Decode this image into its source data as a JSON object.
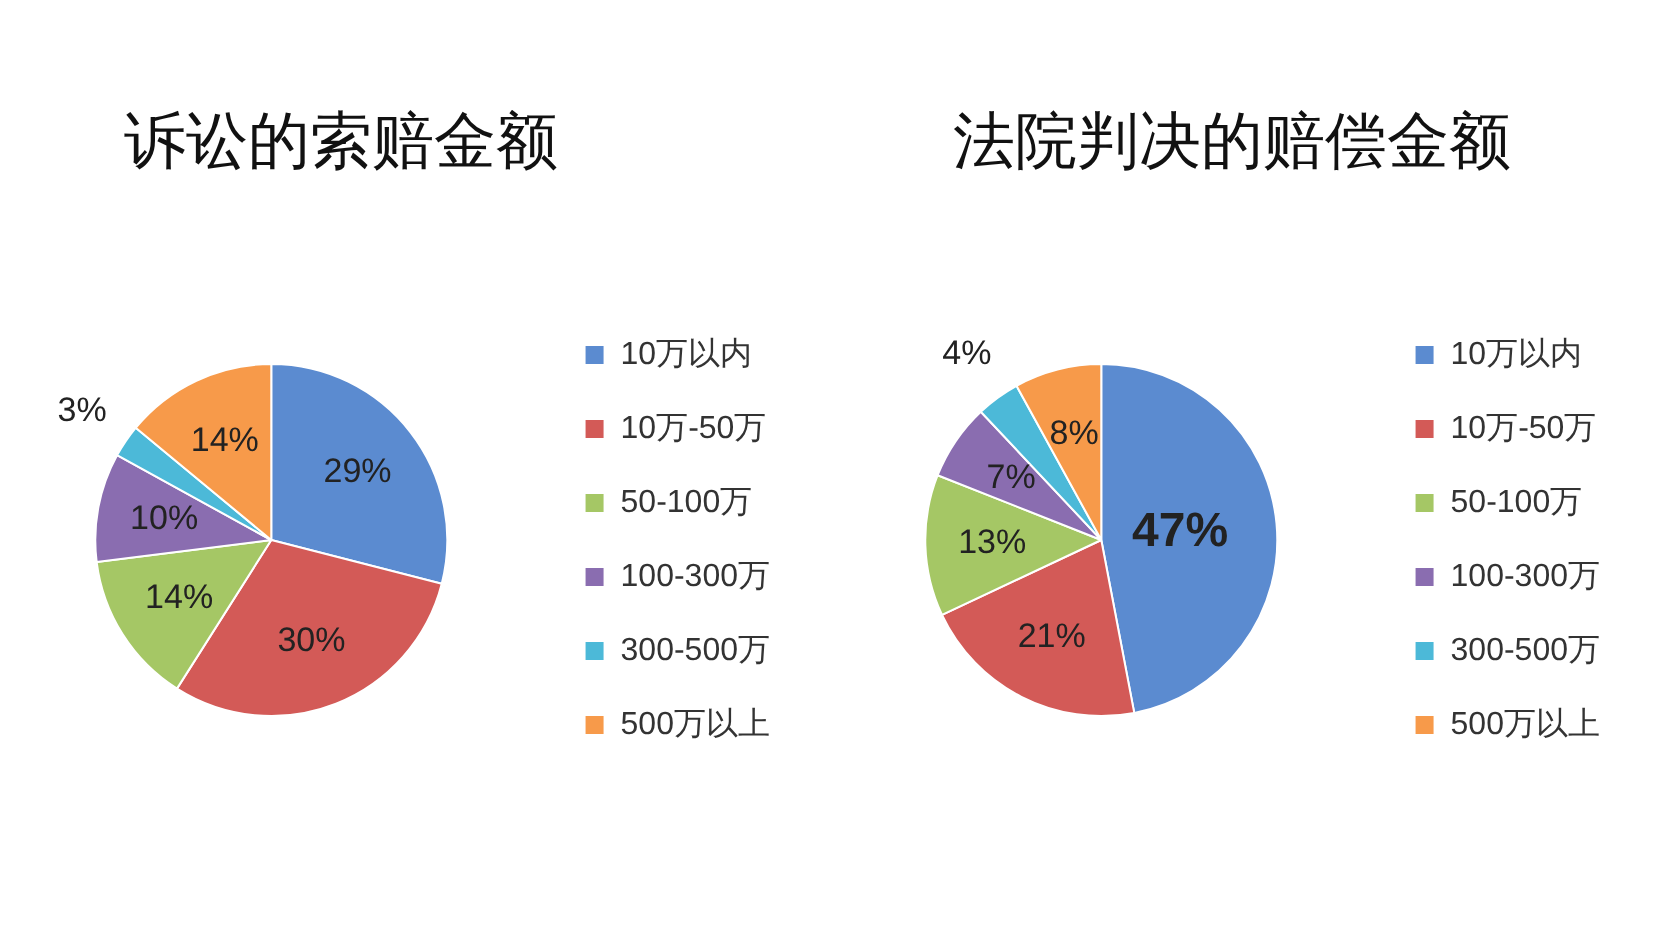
{
  "chart_data": [
    {
      "type": "pie",
      "title": "诉讼的索赔金额",
      "categories": [
        "10万以内",
        "10万-50万",
        "50-100万",
        "100-300万",
        "300-500万",
        "500万以上"
      ],
      "values": [
        29,
        30,
        14,
        10,
        3,
        14
      ],
      "value_labels": [
        "29%",
        "30%",
        "14%",
        "10%",
        "3%",
        "14%"
      ],
      "colors": [
        "#5b8bd0",
        "#d35a57",
        "#a5c765",
        "#8a6db0",
        "#4cb9d8",
        "#f79a4a"
      ],
      "legend": "right"
    },
    {
      "type": "pie",
      "title": "法院判决的赔偿金额",
      "categories": [
        "10万以内",
        "10万-50万",
        "50-100万",
        "100-300万",
        "300-500万",
        "500万以上"
      ],
      "values": [
        47,
        21,
        13,
        7,
        4,
        8
      ],
      "value_labels": [
        "47%",
        "21%",
        "13%",
        "7%",
        "4%",
        "8%"
      ],
      "colors": [
        "#5b8bd0",
        "#d35a57",
        "#a5c765",
        "#8a6db0",
        "#4cb9d8",
        "#f79a4a"
      ],
      "legend": "right"
    }
  ]
}
